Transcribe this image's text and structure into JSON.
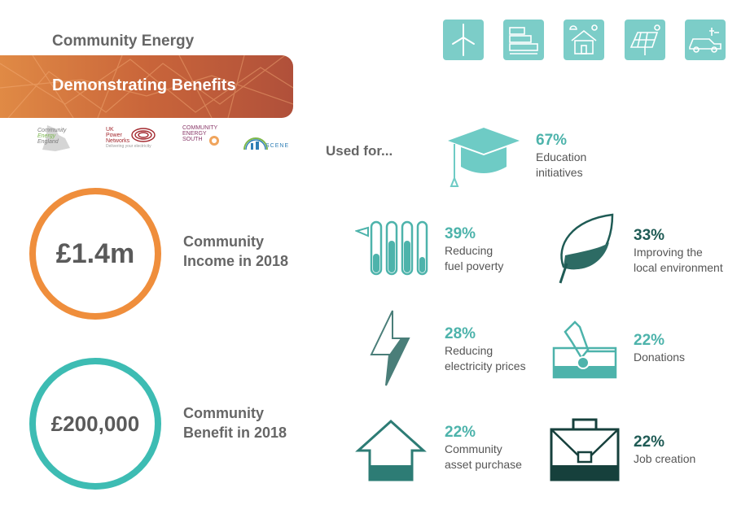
{
  "header": {
    "title": "Community Energy",
    "banner": "Demonstrating Benefits"
  },
  "icons": [
    "wind-turbine-icon",
    "energy-rating-icon",
    "community-house-icon",
    "solar-panel-icon",
    "electric-car-icon"
  ],
  "logos": [
    {
      "name": "community-energy-england-logo",
      "lines": [
        "Community",
        "Energy",
        "England"
      ]
    },
    {
      "name": "uk-power-networks-logo",
      "lines": [
        "UK",
        "Power",
        "Networks",
        "Delivering your electricity"
      ]
    },
    {
      "name": "community-energy-south-logo",
      "lines": [
        "COMMUNITY",
        "ENERGY",
        "SOUTH"
      ]
    },
    {
      "name": "scene-logo",
      "lines": [
        "SCENE"
      ]
    }
  ],
  "income": {
    "value": "£1.4m",
    "label_line1": "Community",
    "label_line2": "Income in 2018"
  },
  "benefit": {
    "value": "£200,000",
    "label_line1": "Community",
    "label_line2": "Benefit in 2018"
  },
  "used_for": "Used for...",
  "uses": {
    "education": {
      "pct": "67%",
      "line1": "Education",
      "line2": "initiatives",
      "icon": "graduation-cap-icon"
    },
    "fuel_poverty": {
      "pct": "39%",
      "line1": "Reducing",
      "line2": "fuel poverty",
      "icon": "thermometer-icon"
    },
    "environment": {
      "pct": "33%",
      "line1": "Improving the",
      "line2": "local environment",
      "icon": "leaf-icon"
    },
    "electricity": {
      "pct": "28%",
      "line1": "Reducing",
      "line2": "electricity prices",
      "icon": "lightning-icon"
    },
    "donations": {
      "pct": "22%",
      "line1": "Donations",
      "icon": "donation-box-icon"
    },
    "asset": {
      "pct": "22%",
      "line1": "Community",
      "line2": "asset purchase",
      "icon": "house-arrow-icon"
    },
    "jobs": {
      "pct": "22%",
      "line1": "Job creation",
      "icon": "briefcase-icon"
    }
  },
  "colors": {
    "orange": "#ef8e3c",
    "teal": "#3dbcb3",
    "dark_teal": "#1f5b55",
    "tile": "#7ccdc8"
  }
}
